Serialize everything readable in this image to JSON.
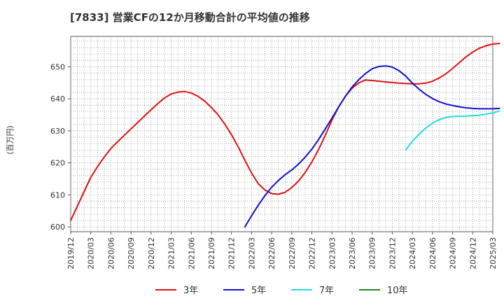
{
  "chart_data": {
    "type": "line",
    "title": "[7833]  営業CFの12か月移動合計の平均値の推移",
    "ylabel": "(百万円)",
    "xlabel": "",
    "ylim": [
      598.5,
      659.5
    ],
    "y_ticks": [
      600,
      610,
      620,
      630,
      640,
      650
    ],
    "x_ticks": [
      "2019/12",
      "2020/03",
      "2020/06",
      "2020/09",
      "2020/12",
      "2021/03",
      "2021/06",
      "2021/09",
      "2021/12",
      "2022/03",
      "2022/06",
      "2022/09",
      "2022/12",
      "2023/03",
      "2023/06",
      "2023/09",
      "2023/12",
      "2024/03",
      "2024/06",
      "2024/09",
      "2024/12",
      "2025/03"
    ],
    "grid": true,
    "legend": "bottom",
    "series": [
      {
        "name": "3年",
        "color": "#dd1111",
        "points": [
          [
            "2019/12",
            602.0
          ],
          [
            "2020/01",
            606.5
          ],
          [
            "2020/02",
            611.0
          ],
          [
            "2020/03",
            615.5
          ],
          [
            "2020/04",
            618.8
          ],
          [
            "2020/05",
            621.8
          ],
          [
            "2020/06",
            624.5
          ],
          [
            "2020/07",
            626.6
          ],
          [
            "2020/08",
            628.6
          ],
          [
            "2020/09",
            630.6
          ],
          [
            "2020/10",
            632.6
          ],
          [
            "2020/11",
            634.6
          ],
          [
            "2020/12",
            636.6
          ],
          [
            "2021/01",
            638.5
          ],
          [
            "2021/02",
            640.3
          ],
          [
            "2021/03",
            641.5
          ],
          [
            "2021/04",
            642.1
          ],
          [
            "2021/05",
            642.3
          ],
          [
            "2021/06",
            641.8
          ],
          [
            "2021/07",
            640.8
          ],
          [
            "2021/08",
            639.3
          ],
          [
            "2021/09",
            637.3
          ],
          [
            "2021/10",
            635.0
          ],
          [
            "2021/11",
            632.1
          ],
          [
            "2021/12",
            628.8
          ],
          [
            "2022/01",
            625.0
          ],
          [
            "2022/02",
            620.8
          ],
          [
            "2022/03",
            616.8
          ],
          [
            "2022/04",
            613.5
          ],
          [
            "2022/05",
            611.5
          ],
          [
            "2022/06",
            610.4
          ],
          [
            "2022/07",
            610.2
          ],
          [
            "2022/08",
            610.8
          ],
          [
            "2022/09",
            612.3
          ],
          [
            "2022/10",
            614.3
          ],
          [
            "2022/11",
            617.0
          ],
          [
            "2022/12",
            620.3
          ],
          [
            "2023/01",
            624.2
          ],
          [
            "2023/02",
            628.6
          ],
          [
            "2023/03",
            633.4
          ],
          [
            "2023/04",
            637.5
          ],
          [
            "2023/05",
            640.8
          ],
          [
            "2023/06",
            643.3
          ],
          [
            "2023/07",
            645.0
          ],
          [
            "2023/08",
            645.9
          ],
          [
            "2023/09",
            645.7
          ],
          [
            "2023/10",
            645.5
          ],
          [
            "2023/11",
            645.3
          ],
          [
            "2023/12",
            645.1
          ],
          [
            "2024/01",
            644.9
          ],
          [
            "2024/02",
            644.8
          ],
          [
            "2024/03",
            644.7
          ],
          [
            "2024/04",
            644.7
          ],
          [
            "2024/05",
            644.9
          ],
          [
            "2024/06",
            645.5
          ],
          [
            "2024/07",
            646.5
          ],
          [
            "2024/08",
            647.8
          ],
          [
            "2024/09",
            649.5
          ],
          [
            "2024/10",
            651.3
          ],
          [
            "2024/11",
            653.1
          ],
          [
            "2024/12",
            654.6
          ],
          [
            "2025/01",
            655.8
          ],
          [
            "2025/02",
            656.6
          ],
          [
            "2025/03",
            657.1
          ],
          [
            "2025/04",
            657.3
          ]
        ]
      },
      {
        "name": "5年",
        "color": "#1111cc",
        "points": [
          [
            "2022/02",
            600.0
          ],
          [
            "2022/03",
            603.5
          ],
          [
            "2022/04",
            606.8
          ],
          [
            "2022/05",
            609.8
          ],
          [
            "2022/06",
            612.4
          ],
          [
            "2022/07",
            614.5
          ],
          [
            "2022/08",
            616.3
          ],
          [
            "2022/09",
            617.8
          ],
          [
            "2022/10",
            619.6
          ],
          [
            "2022/11",
            621.8
          ],
          [
            "2022/12",
            624.3
          ],
          [
            "2023/01",
            627.3
          ],
          [
            "2023/02",
            630.6
          ],
          [
            "2023/03",
            634.0
          ],
          [
            "2023/04",
            637.5
          ],
          [
            "2023/05",
            640.8
          ],
          [
            "2023/06",
            643.7
          ],
          [
            "2023/07",
            646.0
          ],
          [
            "2023/08",
            647.9
          ],
          [
            "2023/09",
            649.4
          ],
          [
            "2023/10",
            650.1
          ],
          [
            "2023/11",
            650.3
          ],
          [
            "2023/12",
            649.9
          ],
          [
            "2024/01",
            648.8
          ],
          [
            "2024/02",
            647.1
          ],
          [
            "2024/03",
            644.9
          ],
          [
            "2024/04",
            643.0
          ],
          [
            "2024/05",
            641.4
          ],
          [
            "2024/06",
            640.1
          ],
          [
            "2024/07",
            639.1
          ],
          [
            "2024/08",
            638.4
          ],
          [
            "2024/09",
            637.9
          ],
          [
            "2024/10",
            637.5
          ],
          [
            "2024/11",
            637.2
          ],
          [
            "2024/12",
            637.0
          ],
          [
            "2025/01",
            636.9
          ],
          [
            "2025/02",
            636.9
          ],
          [
            "2025/03",
            636.9
          ],
          [
            "2025/04",
            637.0
          ]
        ]
      },
      {
        "name": "7年",
        "color": "#22dddd",
        "points": [
          [
            "2024/02",
            624.0
          ],
          [
            "2024/03",
            626.7
          ],
          [
            "2024/04",
            629.0
          ],
          [
            "2024/05",
            630.9
          ],
          [
            "2024/06",
            632.4
          ],
          [
            "2024/07",
            633.5
          ],
          [
            "2024/08",
            634.2
          ],
          [
            "2024/09",
            634.5
          ],
          [
            "2024/10",
            634.6
          ],
          [
            "2024/11",
            634.6
          ],
          [
            "2024/12",
            634.7
          ],
          [
            "2025/01",
            634.9
          ],
          [
            "2025/02",
            635.2
          ],
          [
            "2025/03",
            635.6
          ],
          [
            "2025/04",
            636.2
          ]
        ]
      },
      {
        "name": "10年",
        "color": "#228822",
        "points": []
      }
    ]
  }
}
